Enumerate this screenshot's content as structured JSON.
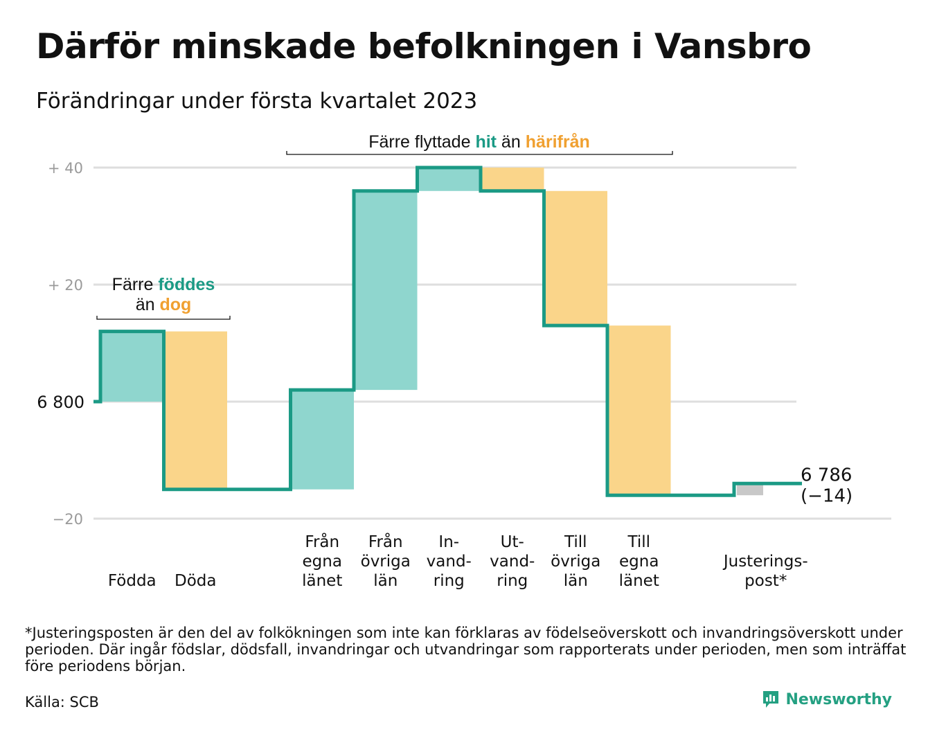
{
  "title": "Därför minskade befolkningen i Vansbro",
  "subtitle": "Förändringar under första kvartalet 2023",
  "footnote": "*Justeringsposten är den del av folkökningen som inte kan förklaras av födelseöverskott och invandringsöverskott under perioden. Där ingår födslar, dödsfall, invandringar och utvandringar som rapporterats under perioden, men som inträffat före periodens början.",
  "source": "Källa: SCB",
  "brand": "Newsworthy",
  "colors": {
    "teal_line": "#1b9a85",
    "teal_fill": "#8fd6ce",
    "orange_fill": "#fad58a",
    "orange_text": "#f0a030",
    "teal_text": "#1b9a85",
    "gray_fill": "#c8c8c8",
    "grid": "#dedede",
    "tick": "#9a9a9a"
  },
  "chart_data": {
    "type": "waterfall",
    "start_value": 6800,
    "start_label": "6 800",
    "end_label": "6 786",
    "end_change_label": "(−14)",
    "y_ticks": [
      {
        "value": 40,
        "label": "+ 40"
      },
      {
        "value": 20,
        "label": "+ 20"
      },
      {
        "value": 0,
        "label": ""
      },
      {
        "value": -20,
        "label": "−20"
      }
    ],
    "ylim": [
      -20,
      40
    ],
    "grid": true,
    "categories": [
      {
        "label": [
          "Födda"
        ],
        "change": 12,
        "kind": "increase"
      },
      {
        "label": [
          "Döda"
        ],
        "change": -27,
        "kind": "decrease"
      },
      {
        "label": [
          ""
        ],
        "change": 0,
        "kind": "spacer"
      },
      {
        "label": [
          "Från",
          "egna",
          "länet"
        ],
        "change": 17,
        "kind": "increase"
      },
      {
        "label": [
          "Från",
          "övriga",
          "län"
        ],
        "change": 34,
        "kind": "increase"
      },
      {
        "label": [
          "In-",
          "vand-",
          "ring"
        ],
        "change": 4,
        "kind": "increase"
      },
      {
        "label": [
          "Ut-",
          "vand-",
          "ring"
        ],
        "change": -4,
        "kind": "decrease"
      },
      {
        "label": [
          "Till",
          "övriga",
          "län"
        ],
        "change": -23,
        "kind": "decrease"
      },
      {
        "label": [
          "Till",
          "egna",
          "länet"
        ],
        "change": -29,
        "kind": "decrease"
      },
      {
        "label": [
          ""
        ],
        "change": 0,
        "kind": "spacer"
      },
      {
        "label": [
          "Justerings-",
          "post*"
        ],
        "change": 2,
        "kind": "adjustment"
      }
    ],
    "annotations": {
      "births": {
        "parts": [
          {
            "text": "Färre ",
            "style": "plain"
          },
          {
            "text": "föddes",
            "style": "teal"
          },
          {
            "text": "än ",
            "style": "plain",
            "newline": true
          },
          {
            "text": "dog",
            "style": "orange"
          }
        ]
      },
      "migration": {
        "parts": [
          {
            "text": "Färre flyttade ",
            "style": "plain"
          },
          {
            "text": "hit",
            "style": "teal"
          },
          {
            "text": " än ",
            "style": "plain"
          },
          {
            "text": "härifrån",
            "style": "orange"
          }
        ]
      }
    }
  }
}
